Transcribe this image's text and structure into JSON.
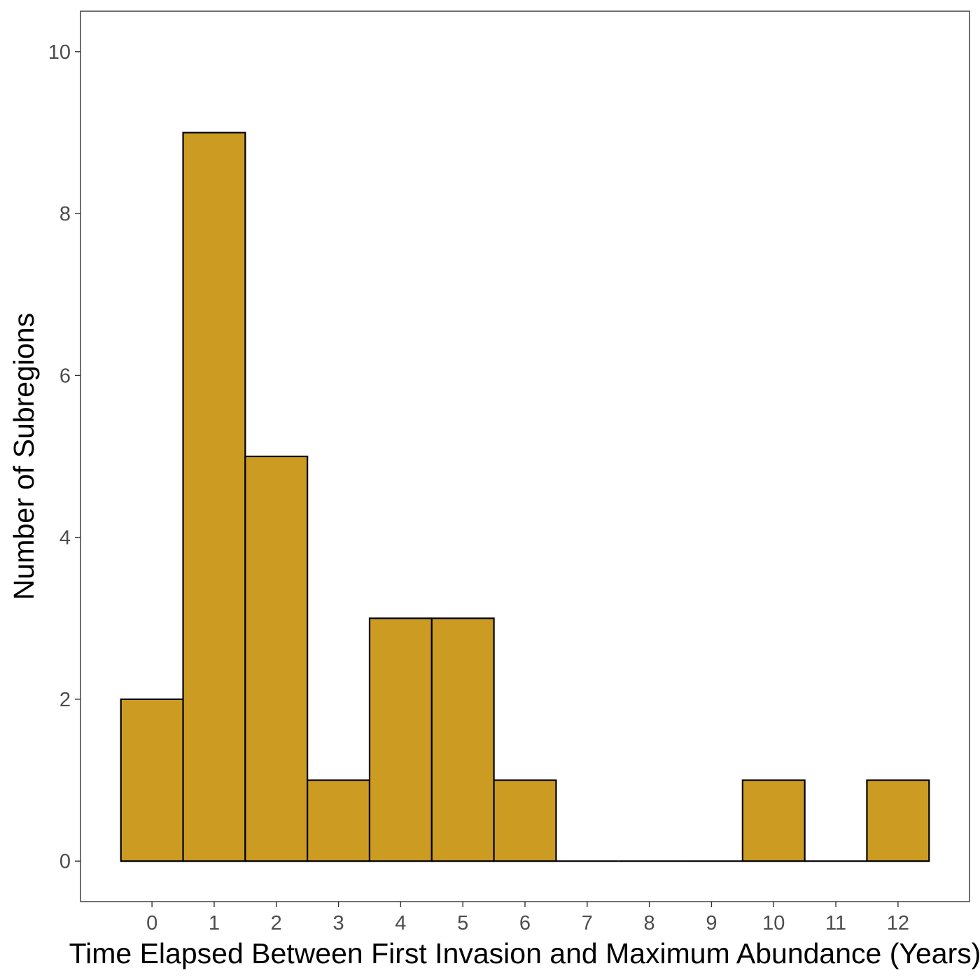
{
  "chart_data": {
    "type": "bar",
    "title": "",
    "xlabel": "Time Elapsed Between First Invasion and Maximum Abundance (Years)",
    "ylabel": "Number of Subregions",
    "categories": [
      "0",
      "1",
      "2",
      "3",
      "4",
      "5",
      "6",
      "7",
      "8",
      "9",
      "10",
      "11",
      "12"
    ],
    "x": [
      0,
      1,
      2,
      3,
      4,
      5,
      6,
      7,
      8,
      9,
      10,
      11,
      12
    ],
    "values": [
      2,
      9,
      5,
      1,
      3,
      3,
      1,
      0,
      0,
      0,
      1,
      0,
      1
    ],
    "xlim": [
      -1.15,
      13.15
    ],
    "ylim": [
      -0.5,
      10.5
    ],
    "xticks": [
      0,
      1,
      2,
      3,
      4,
      5,
      6,
      7,
      8,
      9,
      10,
      11,
      12
    ],
    "yticks": [
      0,
      2,
      4,
      6,
      8,
      10
    ],
    "bar_width": 1,
    "grid": false,
    "legend": "none",
    "colors": {
      "bar_fill": "#CC9C22",
      "bar_stroke": "#000000",
      "panel_border": "#333333",
      "tick_text": "#4d4d4d",
      "axis_title": "#000000"
    }
  }
}
